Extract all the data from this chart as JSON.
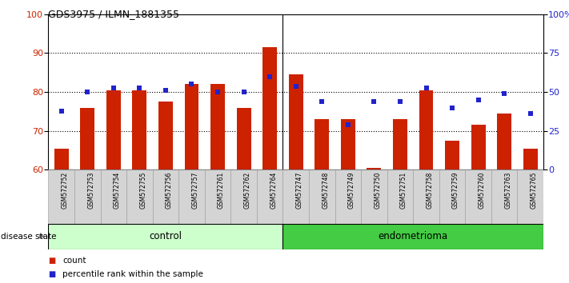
{
  "title": "GDS3975 / ILMN_1881355",
  "samples": [
    "GSM572752",
    "GSM572753",
    "GSM572754",
    "GSM572755",
    "GSM572756",
    "GSM572757",
    "GSM572761",
    "GSM572762",
    "GSM572764",
    "GSM572747",
    "GSM572748",
    "GSM572749",
    "GSM572750",
    "GSM572751",
    "GSM572758",
    "GSM572759",
    "GSM572760",
    "GSM572763",
    "GSM572765"
  ],
  "bar_values": [
    65.5,
    76.0,
    80.5,
    80.5,
    77.5,
    82.0,
    82.0,
    76.0,
    91.5,
    84.5,
    73.0,
    73.0,
    60.5,
    73.0,
    80.5,
    67.5,
    71.5,
    74.5,
    65.5
  ],
  "blue_values": [
    75.0,
    80.0,
    81.0,
    81.0,
    80.5,
    82.0,
    80.0,
    80.0,
    84.0,
    81.5,
    77.5,
    71.5,
    77.5,
    77.5,
    81.0,
    76.0,
    78.0,
    79.5,
    74.5
  ],
  "control_count": 9,
  "endometrioma_count": 10,
  "y_min": 60,
  "y_max": 100,
  "left_yticks": [
    60,
    70,
    80,
    90,
    100
  ],
  "right_yticks": [
    0,
    25,
    50,
    75,
    100
  ],
  "right_yticklabels": [
    "0",
    "25",
    "50",
    "75",
    "100%"
  ],
  "bar_color": "#cc2200",
  "blue_color": "#2222cc",
  "control_label": "control",
  "endometrioma_label": "endometrioma",
  "legend_count": "count",
  "legend_percentile": "percentile rank within the sample",
  "disease_state_label": "disease state",
  "control_bg": "#ccffcc",
  "endometrioma_bg": "#44cc44",
  "bar_width": 0.55,
  "grid_lines": [
    70,
    80,
    90
  ]
}
